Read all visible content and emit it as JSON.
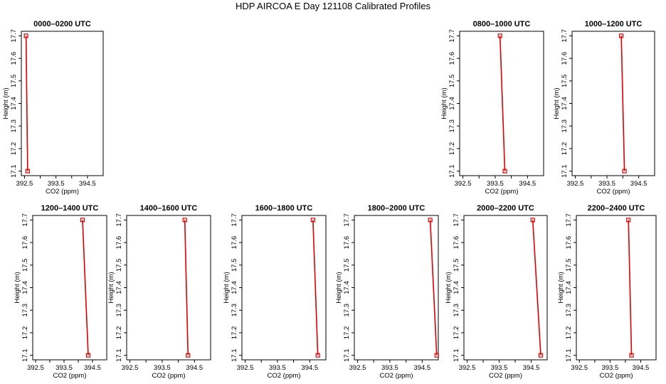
{
  "title": "HDP AIRCOA E  Day 121108  Calibrated Profiles",
  "chart_data": [
    {
      "type": "line",
      "title": "0000–0200 UTC",
      "xlabel": "CO2 (ppm)",
      "ylabel": "Height (m)",
      "xlim": [
        392.4,
        395.0
      ],
      "ylim": [
        17.08,
        17.72
      ],
      "x_ticks": [
        "392.5",
        "393.5",
        "394.5"
      ],
      "y_ticks": [
        "17.1",
        "17.2",
        "17.3",
        "17.4",
        "17.5",
        "17.6",
        "17.7"
      ],
      "series": [
        {
          "x": [
            392.55,
            392.6
          ],
          "y": [
            17.7,
            17.1
          ],
          "color": "#dd0000"
        }
      ]
    },
    {
      "type": "line",
      "title": "0800–1000 UTC",
      "xlabel": "CO2 (ppm)",
      "ylabel": "Height (m)",
      "xlim": [
        392.4,
        395.0
      ],
      "ylim": [
        17.08,
        17.72
      ],
      "x_ticks": [
        "392.5",
        "393.5",
        "394.5"
      ],
      "y_ticks": [
        "17.1",
        "17.2",
        "17.3",
        "17.4",
        "17.5",
        "17.6",
        "17.7"
      ],
      "series": [
        {
          "x": [
            393.65,
            393.8
          ],
          "y": [
            17.7,
            17.1
          ],
          "color": "#dd0000"
        }
      ]
    },
    {
      "type": "line",
      "title": "1000–1200 UTC",
      "xlabel": "CO2 (ppm)",
      "ylabel": "Height (m)",
      "xlim": [
        392.4,
        395.0
      ],
      "ylim": [
        17.08,
        17.72
      ],
      "x_ticks": [
        "392.5",
        "393.5",
        "394.5"
      ],
      "y_ticks": [
        "17.1",
        "17.2",
        "17.3",
        "17.4",
        "17.5",
        "17.6",
        "17.7"
      ],
      "series": [
        {
          "x": [
            393.95,
            394.05
          ],
          "y": [
            17.7,
            17.1
          ],
          "color": "#dd0000"
        }
      ]
    },
    {
      "type": "line",
      "title": "1200–1400 UTC",
      "xlabel": "CO2 (ppm)",
      "ylabel": "Height (m)",
      "xlim": [
        392.4,
        395.0
      ],
      "ylim": [
        17.08,
        17.72
      ],
      "x_ticks": [
        "392.5",
        "393.5",
        "394.5"
      ],
      "y_ticks": [
        "17.1",
        "17.2",
        "17.3",
        "17.4",
        "17.5",
        "17.6",
        "17.7"
      ],
      "series": [
        {
          "x": [
            394.15,
            394.35
          ],
          "y": [
            17.7,
            17.1
          ],
          "color": "#dd0000"
        }
      ]
    },
    {
      "type": "line",
      "title": "1400–1600 UTC",
      "xlabel": "CO2 (ppm)",
      "ylabel": "Height (m)",
      "xlim": [
        392.4,
        395.0
      ],
      "ylim": [
        17.08,
        17.72
      ],
      "x_ticks": [
        "392.5",
        "393.5",
        "394.5"
      ],
      "y_ticks": [
        "17.1",
        "17.2",
        "17.3",
        "17.4",
        "17.5",
        "17.6",
        "17.7"
      ],
      "series": [
        {
          "x": [
            394.2,
            394.3
          ],
          "y": [
            17.7,
            17.1
          ],
          "color": "#dd0000"
        }
      ]
    },
    {
      "type": "line",
      "title": "1600–1800 UTC",
      "xlabel": "CO2 (ppm)",
      "ylabel": "Height (m)",
      "xlim": [
        392.4,
        395.0
      ],
      "ylim": [
        17.08,
        17.72
      ],
      "x_ticks": [
        "392.5",
        "393.5",
        "394.5"
      ],
      "y_ticks": [
        "17.1",
        "17.2",
        "17.3",
        "17.4",
        "17.5",
        "17.6",
        "17.7"
      ],
      "series": [
        {
          "x": [
            394.6,
            394.75
          ],
          "y": [
            17.7,
            17.1
          ],
          "color": "#dd0000"
        }
      ]
    },
    {
      "type": "line",
      "title": "1800–2000 UTC",
      "xlabel": "CO2 (ppm)",
      "ylabel": "Height (m)",
      "xlim": [
        392.4,
        395.0
      ],
      "ylim": [
        17.08,
        17.72
      ],
      "x_ticks": [
        "392.5",
        "393.5",
        "394.5"
      ],
      "y_ticks": [
        "17.1",
        "17.2",
        "17.3",
        "17.4",
        "17.5",
        "17.6",
        "17.7"
      ],
      "series": [
        {
          "x": [
            394.75,
            394.95
          ],
          "y": [
            17.7,
            17.1
          ],
          "color": "#dd0000"
        }
      ]
    },
    {
      "type": "line",
      "title": "2000–2200 UTC",
      "xlabel": "CO2 (ppm)",
      "ylabel": "Height (m)",
      "xlim": [
        392.4,
        395.0
      ],
      "ylim": [
        17.08,
        17.72
      ],
      "x_ticks": [
        "392.5",
        "393.5",
        "394.5"
      ],
      "y_ticks": [
        "17.1",
        "17.2",
        "17.3",
        "17.4",
        "17.5",
        "17.6",
        "17.7"
      ],
      "series": [
        {
          "x": [
            394.55,
            394.8
          ],
          "y": [
            17.7,
            17.1
          ],
          "color": "#dd0000"
        }
      ]
    },
    {
      "type": "line",
      "title": "2200–2400 UTC",
      "xlabel": "CO2 (ppm)",
      "ylabel": "Height (m)",
      "xlim": [
        392.4,
        395.0
      ],
      "ylim": [
        17.08,
        17.72
      ],
      "x_ticks": [
        "392.5",
        "393.5",
        "394.5"
      ],
      "y_ticks": [
        "17.1",
        "17.2",
        "17.3",
        "17.4",
        "17.5",
        "17.6",
        "17.7"
      ],
      "series": [
        {
          "x": [
            394.1,
            394.2
          ],
          "y": [
            17.7,
            17.1
          ],
          "color": "#dd0000"
        }
      ]
    }
  ]
}
